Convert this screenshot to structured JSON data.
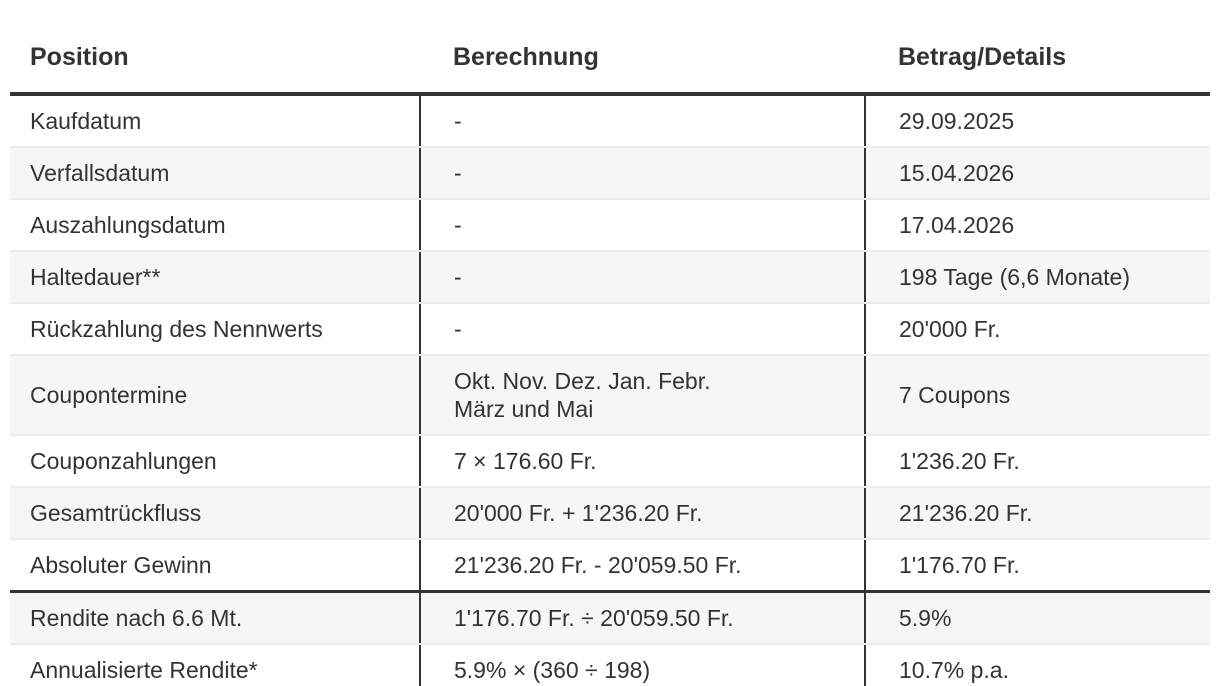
{
  "table": {
    "columns": [
      {
        "key": "position",
        "label": "Position"
      },
      {
        "key": "berechnung",
        "label": "Berechnung"
      },
      {
        "key": "betrag",
        "label": "Betrag/Details"
      }
    ],
    "rows": [
      {
        "position": "Kaufdatum",
        "berechnung": "-",
        "betrag": "29.09.2025"
      },
      {
        "position": "Verfallsdatum",
        "berechnung": "-",
        "betrag": "15.04.2026"
      },
      {
        "position": "Auszahlungsdatum",
        "berechnung": "-",
        "betrag": "17.04.2026"
      },
      {
        "position": "Haltedauer**",
        "berechnung": "-",
        "betrag": "198 Tage (6,6 Monate)"
      },
      {
        "position": "Rückzahlung des Nennwerts",
        "berechnung": "-",
        "betrag": "20'000 Fr."
      },
      {
        "position": "Coupontermine",
        "berechnung": "Okt. Nov. Dez. Jan. Febr.\nMärz und Mai",
        "betrag": "7 Coupons"
      },
      {
        "position": "Couponzahlungen",
        "berechnung": "7 × 176.60 Fr.",
        "betrag": "1'236.20 Fr."
      },
      {
        "position": "Gesamtrückfluss",
        "berechnung": "20'000 Fr. + 1'236.20 Fr.",
        "betrag": "21'236.20 Fr."
      },
      {
        "position": "Absoluter Gewinn",
        "berechnung": "21'236.20 Fr. - 20'059.50 Fr.",
        "betrag": "1'176.70 Fr."
      },
      {
        "position": "Rendite nach 6.6 Mt.",
        "berechnung": "1'176.70 Fr. ÷ 20'059.50 Fr.",
        "betrag": "5.9%",
        "section_start": true
      },
      {
        "position": "Annualisierte Rendite*",
        "berechnung": "5.9% × (360 ÷ 198)",
        "betrag": "10.7% p.a."
      }
    ],
    "colors": {
      "text": "#333333",
      "rule_dark": "#333333",
      "rule_light": "#ececec",
      "zebra_row": "#f6f6f6",
      "background": "#ffffff"
    }
  }
}
